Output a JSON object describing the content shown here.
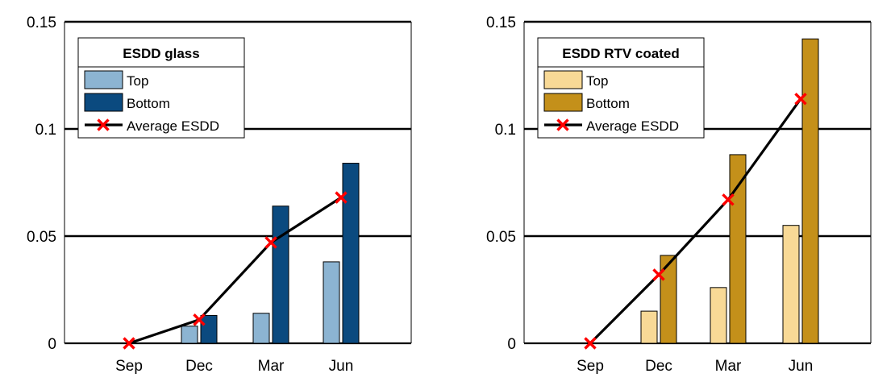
{
  "chart_data": [
    {
      "type": "bar",
      "categories": [
        "Sep",
        "Dec",
        "Mar",
        "Jun"
      ],
      "ylim": [
        0,
        0.15
      ],
      "yticks": [
        0,
        0.05,
        0.1,
        0.15
      ],
      "ytick_labels": [
        "0",
        "0.05",
        "0.1",
        "0.15"
      ],
      "grid": "horizontal",
      "legend": {
        "placement": "top-left",
        "title": "ESDD glass",
        "entries": [
          "Top",
          "Bottom",
          "Average ESDD"
        ]
      },
      "series": [
        {
          "name": "Top",
          "kind": "bar",
          "color": "#8CB4D2",
          "values": [
            0,
            0.008,
            0.014,
            0.038
          ]
        },
        {
          "name": "Bottom",
          "kind": "bar",
          "color": "#0B4A7F",
          "values": [
            0,
            0.013,
            0.064,
            0.084
          ]
        },
        {
          "name": "Average ESDD",
          "kind": "line",
          "color": "#000000",
          "marker_color": "#FF0000",
          "values": [
            0,
            0.011,
            0.047,
            0.068
          ]
        }
      ]
    },
    {
      "type": "bar",
      "categories": [
        "Sep",
        "Dec",
        "Mar",
        "Jun"
      ],
      "ylim": [
        0,
        0.15
      ],
      "yticks": [
        0,
        0.05,
        0.1,
        0.15
      ],
      "ytick_labels": [
        "0",
        "0.05",
        "0.1",
        "0.15"
      ],
      "grid": "horizontal",
      "legend": {
        "placement": "top-left",
        "title": "ESDD RTV coated",
        "entries": [
          "Top",
          "Bottom",
          "Average ESDD"
        ]
      },
      "series": [
        {
          "name": "Top",
          "kind": "bar",
          "color": "#F8D996",
          "values": [
            0,
            0.015,
            0.026,
            0.055
          ]
        },
        {
          "name": "Bottom",
          "kind": "bar",
          "color": "#C4901A",
          "values": [
            0,
            0.041,
            0.088,
            0.142
          ]
        },
        {
          "name": "Average ESDD",
          "kind": "line",
          "color": "#000000",
          "marker_color": "#FF0000",
          "values": [
            0,
            0.032,
            0.067,
            0.114
          ]
        }
      ]
    }
  ]
}
